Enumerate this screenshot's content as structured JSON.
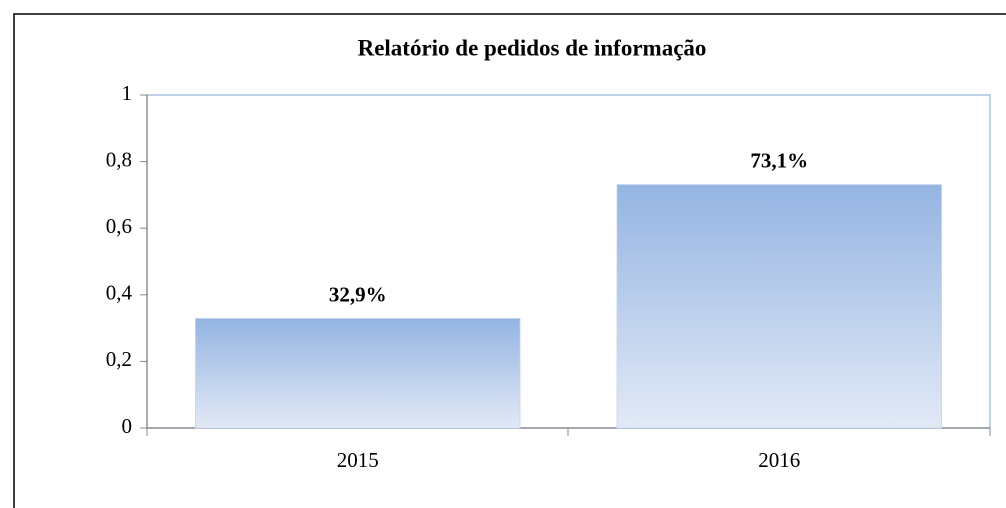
{
  "chart_data": {
    "type": "bar",
    "title": "Relatório de pedidos de informação",
    "categories": [
      "2015",
      "2016"
    ],
    "values": [
      0.329,
      0.731
    ],
    "value_labels": [
      "32,9%",
      "73,1%"
    ],
    "color": "#94b4e2",
    "ylim": [
      0,
      1
    ],
    "yticks": [
      0,
      {
        "value": 0.2,
        "label": "0,2"
      },
      {
        "value": 0.4,
        "label": "0,4"
      },
      {
        "value": 0.6,
        "label": "0,6"
      },
      {
        "value": 0.8,
        "label": "0,8"
      },
      1
    ],
    "grid": false
  }
}
